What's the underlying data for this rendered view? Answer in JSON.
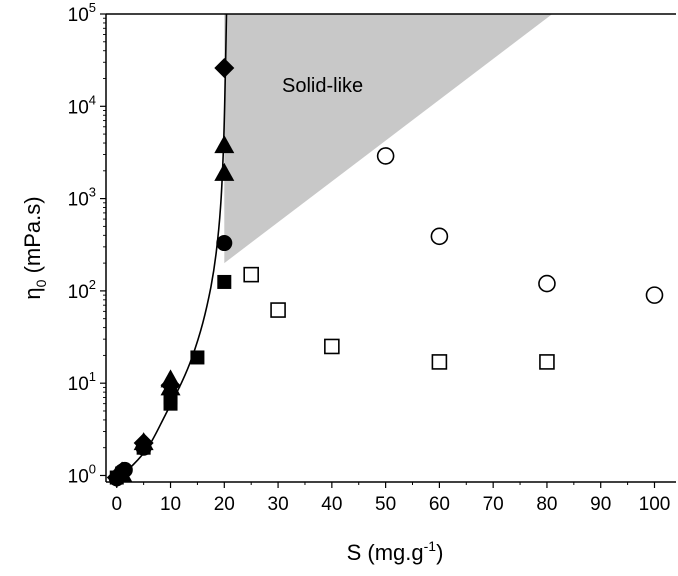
{
  "chart_data": {
    "type": "scatter",
    "xlabel": "S (mg.g",
    "xlabel_sup": "-1",
    "xlabel_end": ")",
    "ylabel": "η",
    "ylabel_sub": "0",
    "ylabel_end": " (mPa.s)",
    "xlim": [
      -2,
      104
    ],
    "ylim": [
      0.85,
      100000
    ],
    "yscale": "log",
    "xticks": [
      0,
      10,
      20,
      30,
      40,
      50,
      60,
      70,
      80,
      90,
      100
    ],
    "xtick_labels": [
      "0",
      "10",
      "20",
      "30",
      "40",
      "50",
      "60",
      "70",
      "80",
      "90",
      "100"
    ],
    "yticks": [
      {
        "base": "10",
        "exp": "0",
        "value": 1
      },
      {
        "base": "10",
        "exp": "1",
        "value": 10
      },
      {
        "base": "10",
        "exp": "2",
        "value": 100
      },
      {
        "base": "10",
        "exp": "3",
        "value": 1000
      },
      {
        "base": "10",
        "exp": "4",
        "value": 10000
      },
      {
        "base": "10",
        "exp": "5",
        "value": 100000
      }
    ],
    "region_label": "Solid-like",
    "region_polygon": [
      [
        20,
        200
      ],
      [
        20,
        100000
      ],
      [
        81,
        100000
      ]
    ],
    "region_color": "#c8c8c8",
    "fit_curve": [
      [
        0,
        0.95
      ],
      [
        3,
        1.3
      ],
      [
        6,
        2.1
      ],
      [
        9,
        4.5
      ],
      [
        12,
        10
      ],
      [
        14,
        19
      ],
      [
        16,
        45
      ],
      [
        17.5,
        110
      ],
      [
        18.5,
        260
      ],
      [
        19.3,
        800
      ],
      [
        19.8,
        3000
      ],
      [
        20.1,
        12000
      ],
      [
        20.4,
        100000
      ]
    ],
    "series": [
      {
        "marker": "square-filled",
        "points": [
          [
            0,
            0.95
          ],
          [
            1,
            1.05
          ],
          [
            5,
            2.0
          ],
          [
            10,
            6.0
          ],
          [
            10,
            7.0
          ],
          [
            15,
            19
          ],
          [
            20,
            125
          ]
        ]
      },
      {
        "marker": "circle-filled",
        "points": [
          [
            0,
            0.93
          ],
          [
            0.5,
            1.0
          ],
          [
            1,
            1.1
          ],
          [
            1.5,
            1.15
          ],
          [
            5,
            2.0
          ],
          [
            20,
            330
          ]
        ]
      },
      {
        "marker": "triangle-filled",
        "points": [
          [
            1,
            1.05
          ],
          [
            5,
            2.3
          ],
          [
            10,
            9.0
          ],
          [
            10,
            11.0
          ],
          [
            20,
            1900
          ],
          [
            20,
            3800
          ]
        ]
      },
      {
        "marker": "diamond-filled",
        "points": [
          [
            0,
            0.95
          ],
          [
            1,
            1.1
          ],
          [
            5,
            2.25
          ],
          [
            10,
            9.5
          ],
          [
            20,
            26000
          ]
        ]
      },
      {
        "marker": "circle-open",
        "points": [
          [
            50,
            2900
          ],
          [
            60,
            390
          ],
          [
            80,
            120
          ],
          [
            100,
            90
          ]
        ]
      },
      {
        "marker": "square-open",
        "points": [
          [
            25,
            150
          ],
          [
            30,
            62
          ],
          [
            40,
            25
          ],
          [
            60,
            17
          ],
          [
            80,
            17
          ]
        ]
      }
    ],
    "grid": false,
    "legend": "none"
  }
}
